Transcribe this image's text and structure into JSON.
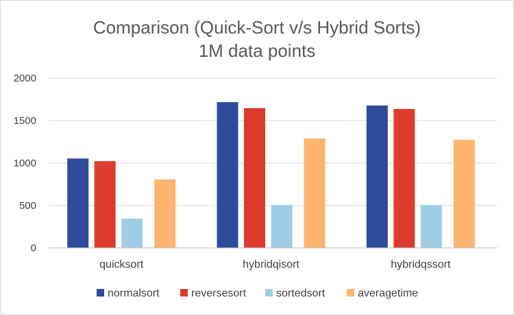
{
  "chart_data": {
    "type": "bar",
    "title": [
      "Comparison (Quick-Sort v/s Hybrid Sorts)",
      "1M data points"
    ],
    "categories": [
      "quicksort",
      "hybridqisort",
      "hybridqssort"
    ],
    "series": [
      {
        "name": "normalsort",
        "color": "#2f4b9c",
        "values": [
          1053,
          1717,
          1677
        ]
      },
      {
        "name": "reversesort",
        "color": "#de3b2f",
        "values": [
          1022,
          1645,
          1636
        ]
      },
      {
        "name": "sortedsort",
        "color": "#9fcde5",
        "values": [
          344,
          505,
          505
        ]
      },
      {
        "name": "averagetime",
        "color": "#fdb46e",
        "values": [
          807,
          1289,
          1273
        ]
      }
    ],
    "ylim": [
      0,
      2000
    ],
    "yticks": [
      0,
      500,
      1000,
      1500,
      2000
    ],
    "ytick_labels": [
      "0",
      "500",
      "1000",
      "1500",
      "2000"
    ],
    "grid": true,
    "legend": "bottom",
    "xlabel": "",
    "ylabel": ""
  }
}
